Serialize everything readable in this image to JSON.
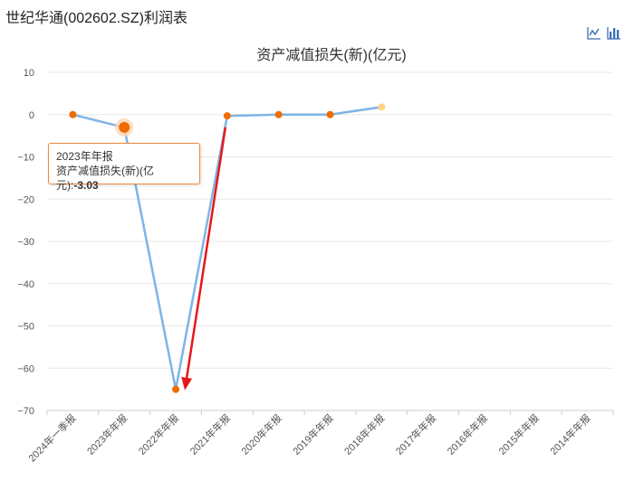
{
  "header": {
    "title": "世纪华通(002602.SZ)利润表"
  },
  "toolbar": {
    "line_icon": "line-chart-icon",
    "bar_icon": "bar-chart-icon"
  },
  "tooltip": {
    "category": "2023年年报",
    "label": "资产减值损失(新)(亿元):",
    "value": "-3.03"
  },
  "chart_data": {
    "type": "line",
    "title": "资产减值损失(新)(亿元)",
    "xlabel": "",
    "ylabel": "",
    "categories": [
      "2024年一季报",
      "2023年年报",
      "2022年年报",
      "2021年年报",
      "2020年年报",
      "2019年年报",
      "2018年年报",
      "2017年年报",
      "2016年年报",
      "2015年年报",
      "2014年年报"
    ],
    "series": [
      {
        "values": [
          0,
          -3.03,
          -65,
          -0.3,
          0,
          0,
          1.8,
          null,
          null,
          null,
          null
        ]
      }
    ],
    "ylim": [
      -70,
      10
    ],
    "yticks": [
      10,
      0,
      -10,
      -20,
      -30,
      -40,
      -50,
      -60,
      -70
    ],
    "ytick_labels": [
      "10",
      "0",
      "−10",
      "−20",
      "−30",
      "−40",
      "−50",
      "−60",
      "−70"
    ],
    "grid": true,
    "colors": {
      "line": "#7eb4e6",
      "point": "#f06c00",
      "point_last": "#ffd285",
      "highlight_halo": "#fbd7b2",
      "annotation_arrow": "#e8161b",
      "axis": "#cccccc",
      "grid": "#e8e8e8",
      "tooltip_border": "#f08a3c",
      "icon": "#3a6fb5"
    },
    "highlight_index": 1,
    "annotation": {
      "type": "arrow",
      "from_category": "2021年年报",
      "from_value": -3,
      "to_category": "2022年年报",
      "to_value": -65
    }
  }
}
